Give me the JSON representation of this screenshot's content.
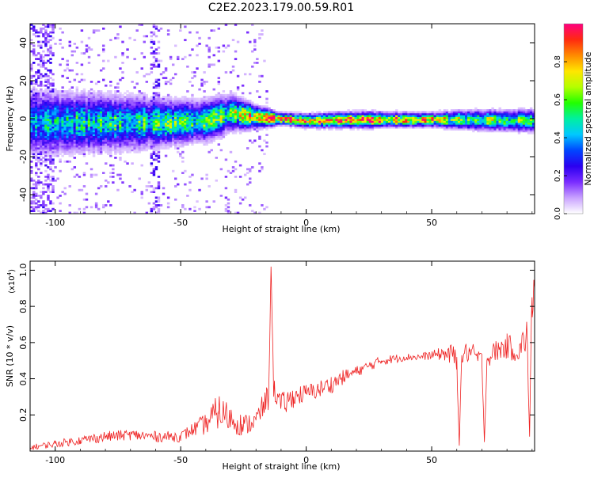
{
  "figure": {
    "title": "C2E2.2023.179.00.59.R01"
  },
  "chart_data": [
    {
      "type": "heatmap",
      "title": "C2E2.2023.179.00.59.R01",
      "xlabel": "Height of straight line (km)",
      "ylabel": "Frequency (Hz)",
      "xlim": [
        -110,
        91
      ],
      "ylim": [
        -50,
        50
      ],
      "x_ticks": [
        -100,
        -50,
        0,
        50
      ],
      "x_tick_labels": [
        "-100",
        "-50",
        "0",
        "50"
      ],
      "y_ticks": [
        -40,
        -20,
        0,
        20,
        40
      ],
      "y_tick_labels": [
        "-40",
        "-20",
        "0",
        "20",
        "40"
      ],
      "grid": false,
      "colorbar": {
        "label": "Normalized spectral amplitude",
        "range": [
          0,
          1
        ],
        "ticks": [
          0.0,
          0.2,
          0.4,
          0.6,
          0.8
        ],
        "tick_labels": [
          "0.0",
          "0.2",
          "0.4",
          "0.6",
          "0.8"
        ],
        "colormap": [
          "#ffffff",
          "#c9a2ff",
          "#7a2cff",
          "#2a00f0",
          "#0046ff",
          "#00c8ff",
          "#00f0a0",
          "#22ff00",
          "#b4ff00",
          "#ffe600",
          "#ff8a00",
          "#ff2a10",
          "#ff0080"
        ]
      },
      "ridge_profile": [
        {
          "x": -110,
          "center": -2,
          "width": 14,
          "peak": 0.38
        },
        {
          "x": -90,
          "center": -2,
          "width": 13,
          "peak": 0.45
        },
        {
          "x": -70,
          "center": -2,
          "width": 12,
          "peak": 0.48
        },
        {
          "x": -55,
          "center": -2,
          "width": 10,
          "peak": 0.5
        },
        {
          "x": -40,
          "center": -1,
          "width": 9,
          "peak": 0.55
        },
        {
          "x": -30,
          "center": 3,
          "width": 8,
          "peak": 0.6
        },
        {
          "x": -20,
          "center": 1,
          "width": 5,
          "peak": 0.75
        },
        {
          "x": -10,
          "center": 0,
          "width": 2.5,
          "peak": 1.0
        },
        {
          "x": 0,
          "center": -1,
          "width": 3,
          "peak": 0.8
        },
        {
          "x": 20,
          "center": -0.5,
          "width": 3.5,
          "peak": 0.85
        },
        {
          "x": 50,
          "center": -0.5,
          "width": 3,
          "peak": 0.8
        },
        {
          "x": 60,
          "center": -0.5,
          "width": 4,
          "peak": 0.6
        },
        {
          "x": 91,
          "center": -1,
          "width": 5,
          "peak": 0.5
        }
      ]
    },
    {
      "type": "line",
      "xlabel": "Height of straight line (km)",
      "ylabel": "SNR (10 * v/v)",
      "y_multiplier_label": "(x10",
      "y_multiplier_exponent": "4",
      "y_multiplier_suffix": ")",
      "xlim": [
        -110,
        91
      ],
      "ylim": [
        0,
        1.05
      ],
      "x_ticks": [
        -100,
        -50,
        0,
        50
      ],
      "x_tick_labels": [
        "-100",
        "-50",
        "0",
        "50"
      ],
      "y_ticks": [
        0.2,
        0.4,
        0.6,
        0.8,
        1.0
      ],
      "y_tick_labels": [
        "0.2",
        "0.4",
        "0.6",
        "0.8",
        "1.0"
      ],
      "grid": false,
      "color": "#ee2222",
      "series": [
        {
          "x": [
            -110,
            -100,
            -90,
            -80,
            -70,
            -60,
            -50,
            -45,
            -40,
            -35,
            -30,
            -25,
            -20,
            -15,
            -14,
            -13,
            -10,
            -5,
            0,
            5,
            10,
            15,
            20,
            25,
            30,
            35,
            40,
            45,
            50,
            55,
            60,
            61,
            62,
            65,
            70,
            71,
            72,
            75,
            80,
            85,
            88,
            89,
            90,
            91
          ],
          "y": [
            0.02,
            0.04,
            0.06,
            0.08,
            0.09,
            0.08,
            0.08,
            0.12,
            0.15,
            0.22,
            0.18,
            0.14,
            0.17,
            0.3,
            1.02,
            0.35,
            0.25,
            0.3,
            0.32,
            0.34,
            0.37,
            0.41,
            0.44,
            0.47,
            0.5,
            0.51,
            0.52,
            0.52,
            0.53,
            0.54,
            0.52,
            0.03,
            0.53,
            0.55,
            0.5,
            0.05,
            0.5,
            0.55,
            0.58,
            0.55,
            0.65,
            0.08,
            0.85,
            0.9
          ],
          "noise": [
            0.015,
            0.02,
            0.025,
            0.03,
            0.03,
            0.03,
            0.03,
            0.04,
            0.06,
            0.1,
            0.08,
            0.06,
            0.06,
            0.08,
            0.0,
            0.06,
            0.07,
            0.06,
            0.05,
            0.05,
            0.05,
            0.04,
            0.03,
            0.03,
            0.025,
            0.025,
            0.02,
            0.02,
            0.025,
            0.04,
            0.08,
            0.0,
            0.06,
            0.06,
            0.05,
            0.0,
            0.04,
            0.06,
            0.07,
            0.07,
            0.1,
            0.0,
            0.15,
            0.15
          ]
        }
      ]
    }
  ]
}
